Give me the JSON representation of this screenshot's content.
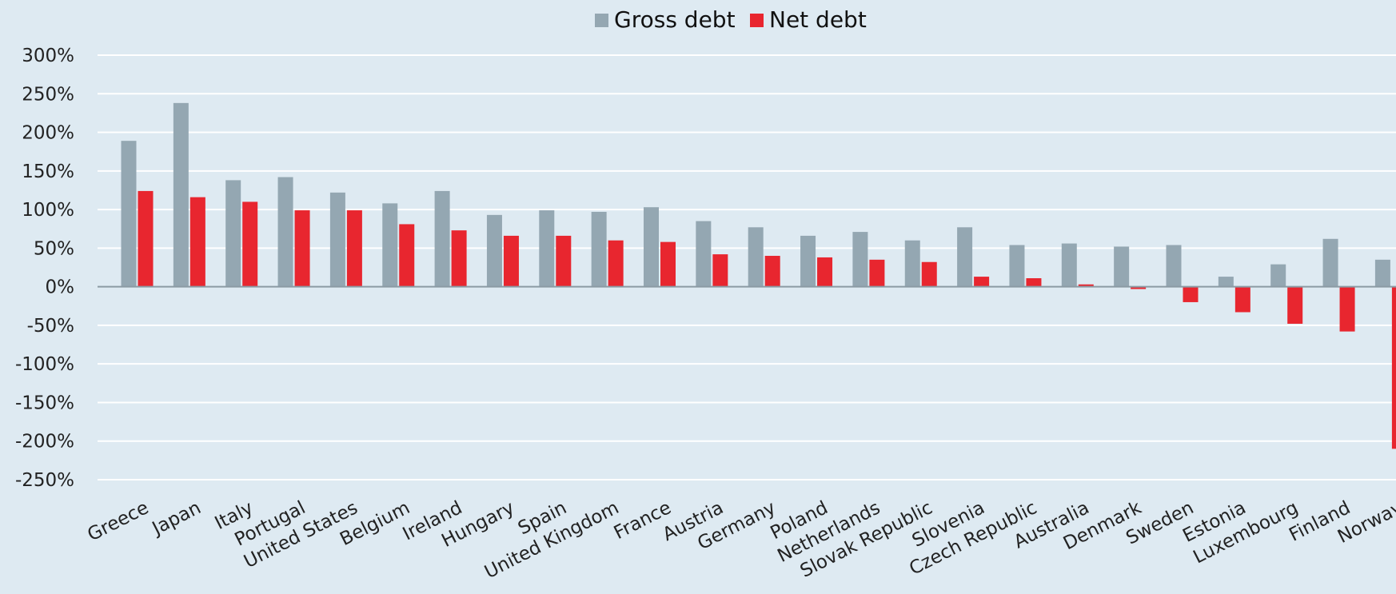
{
  "chart_data": {
    "type": "bar",
    "title": "",
    "xlabel": "",
    "ylabel": "",
    "ylim": [
      -250,
      300
    ],
    "yticks": [
      300,
      250,
      200,
      150,
      100,
      50,
      0,
      -50,
      -100,
      -150,
      -200,
      -250
    ],
    "ytick_labels": [
      "300%",
      "250%",
      "200%",
      "150%",
      "100%",
      "50%",
      "0%",
      "-50%",
      "-100%",
      "-150%",
      "-200%",
      "-250%"
    ],
    "grid": true,
    "legend_position": "top-center",
    "categories": [
      "Greece",
      "Japan",
      "Italy",
      "Portugal",
      "United States",
      "Belgium",
      "Ireland",
      "Hungary",
      "Spain",
      "United Kingdom",
      "France",
      "Austria",
      "Germany",
      "Poland",
      "Netherlands",
      "Slovak Republic",
      "Slovenia",
      "Czech Republic",
      "Australia",
      "Denmark",
      "Sweden",
      "Estonia",
      "Luxembourg",
      "Finland",
      "Norway"
    ],
    "series": [
      {
        "name": "Gross debt",
        "color": "#94a7b2",
        "values": [
          189,
          238,
          138,
          142,
          122,
          108,
          124,
          93,
          99,
          97,
          103,
          85,
          77,
          66,
          71,
          60,
          77,
          54,
          56,
          52,
          54,
          13,
          29,
          62,
          35
        ]
      },
      {
        "name": "Net debt",
        "color": "#e8262f",
        "values": [
          124,
          116,
          110,
          99,
          99,
          81,
          73,
          66,
          66,
          60,
          58,
          42,
          40,
          38,
          35,
          32,
          13,
          11,
          3,
          -3,
          -20,
          -33,
          -48,
          -58,
          -210
        ]
      }
    ]
  }
}
